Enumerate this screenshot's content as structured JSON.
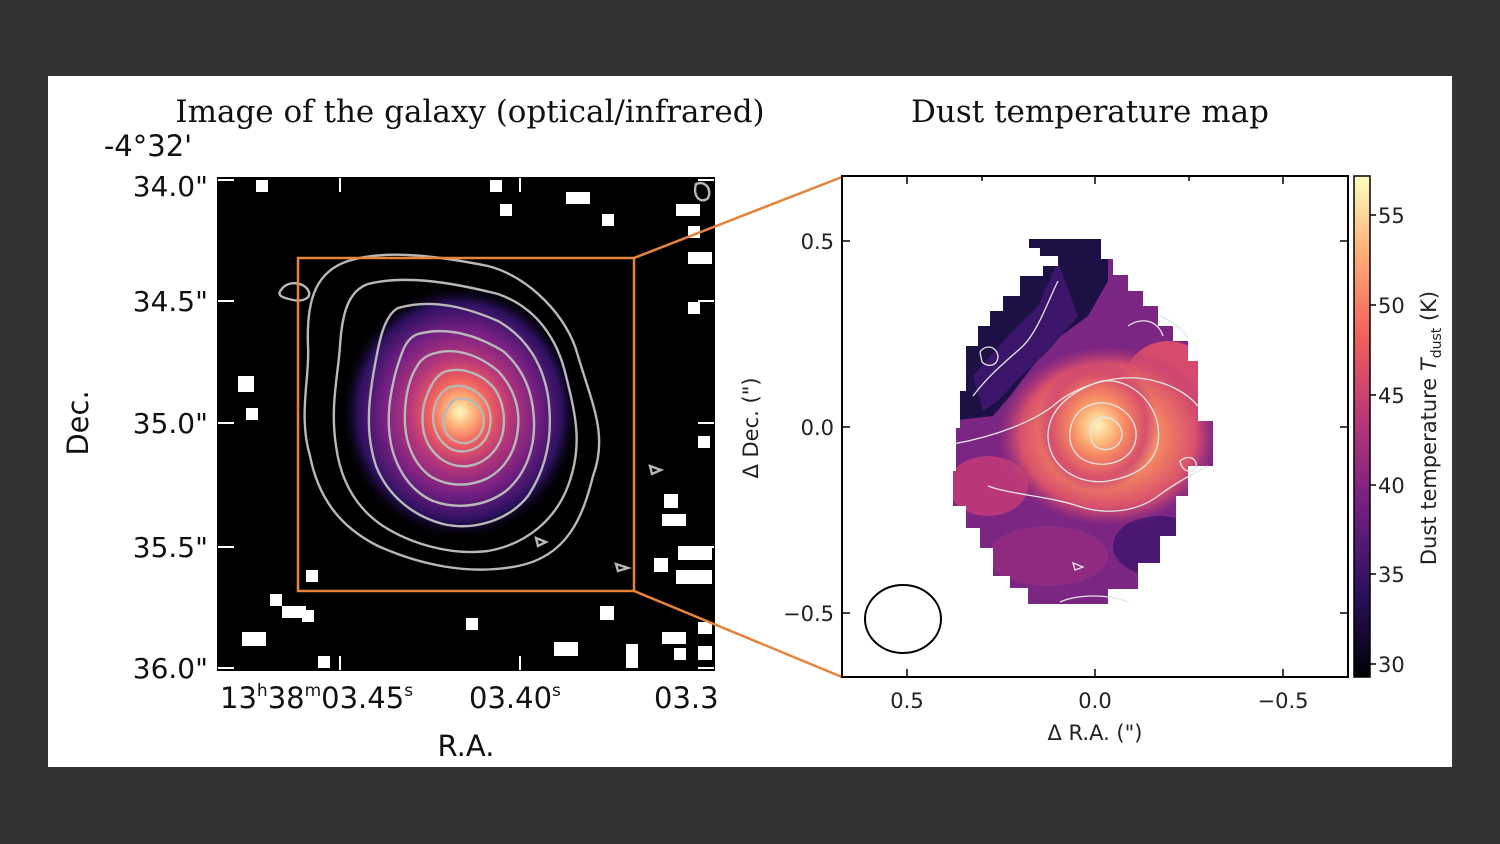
{
  "left_panel": {
    "title": "Image of the galaxy (optical/infrared)",
    "dec_header": "-4°32'",
    "y_tick_labels": [
      "34.0\"",
      "34.5\"",
      "35.0\"",
      "35.5\"",
      "36.0\""
    ],
    "x_tick_label_1": {
      "base": "13",
      "h": "h",
      "mid": "38",
      "m": "m",
      "tail": "03.45",
      "s": "s"
    },
    "x_tick_label_2": {
      "base": "03.40",
      "s": "s"
    },
    "x_tick_label_3": "03.3",
    "xlabel": "R.A.",
    "ylabel": "Dec.",
    "zoom_box_color": "#e8833a"
  },
  "right_panel": {
    "title": "Dust temperature map",
    "x_tick_labels": [
      "0.5",
      "0.0",
      "−0.5"
    ],
    "y_tick_labels": [
      "0.5",
      "0.0",
      "−0.5"
    ],
    "xlabel": "Δ R.A. (\")",
    "ylabel": "Δ Dec. (\")",
    "colorbar": {
      "label_prefix": "Dust temperature ",
      "label_symbol": "T",
      "label_sub": "dust",
      "label_suffix": " (K)",
      "ticks": [
        "30",
        "35",
        "40",
        "45",
        "50",
        "55"
      ],
      "colormap": [
        "#000004",
        "#2c115f",
        "#721f81",
        "#b73779",
        "#f1605d",
        "#feb078",
        "#fcfdbf"
      ]
    }
  },
  "connector_color": "#e8833a",
  "chart_data": {
    "type": "heatmap",
    "title": "Dust temperature map",
    "xlabel": "Δ R.A. (\")",
    "ylabel": "Δ Dec. (\")",
    "xlim": [
      0.67,
      -0.67
    ],
    "ylim": [
      -0.67,
      0.67
    ],
    "colorbar_label": "Dust temperature T_dust (K)",
    "colorbar_range": [
      29,
      57
    ],
    "peak": {
      "x": 0.0,
      "y": 0.0,
      "value": 56
    },
    "beam": {
      "x": 0.5,
      "y": -0.52,
      "major": 0.21,
      "minor": 0.18
    }
  }
}
